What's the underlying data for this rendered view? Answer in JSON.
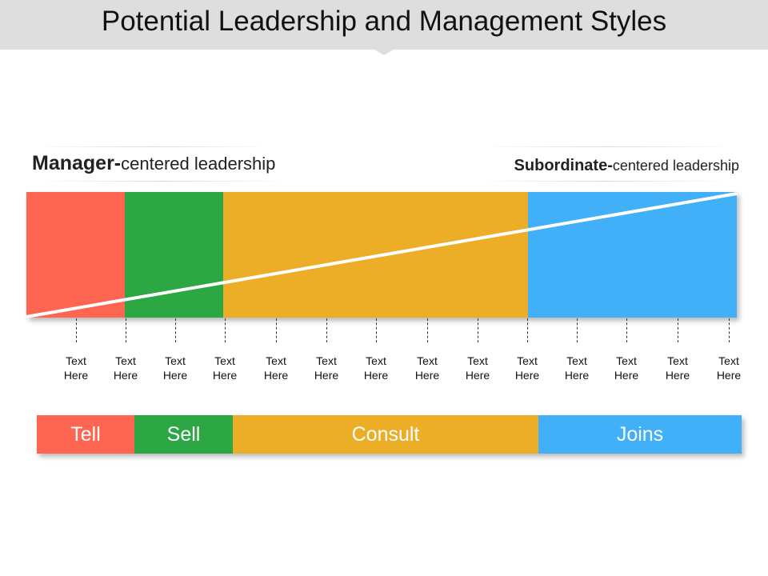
{
  "title": "Potential Leadership and Management Styles",
  "left_heading": {
    "bold": "Manager-",
    "rest": "centered leadership"
  },
  "right_heading": {
    "bold": "Subordinate-",
    "rest": "centered leadership"
  },
  "colors": {
    "red": "#fe6651",
    "green": "#2ca744",
    "orange": "#edae27",
    "blue": "#42b0f8",
    "title_bar": "#dedede"
  },
  "ticks": [
    {
      "line1": "Text",
      "line2": "Here"
    },
    {
      "line1": "Text",
      "line2": "Here"
    },
    {
      "line1": "Text",
      "line2": "Here"
    },
    {
      "line1": "Text",
      "line2": "Here"
    },
    {
      "line1": "Text",
      "line2": "Here"
    },
    {
      "line1": "Text",
      "line2": "Here"
    },
    {
      "line1": "Text",
      "line2": "Here"
    },
    {
      "line1": "Text",
      "line2": "Here"
    },
    {
      "line1": "Text",
      "line2": "Here"
    },
    {
      "line1": "Text",
      "line2": "Here"
    },
    {
      "line1": "Text",
      "line2": "Here"
    },
    {
      "line1": "Text",
      "line2": "Here"
    },
    {
      "line1": "Text",
      "line2": "Here"
    },
    {
      "line1": "Text",
      "line2": "Here"
    }
  ],
  "styles": [
    {
      "label": "Tell",
      "color": "#fe6651"
    },
    {
      "label": "Sell",
      "color": "#2ca744"
    },
    {
      "label": "Consult",
      "color": "#edae27"
    },
    {
      "label": "Joins",
      "color": "#42b0f8"
    }
  ]
}
